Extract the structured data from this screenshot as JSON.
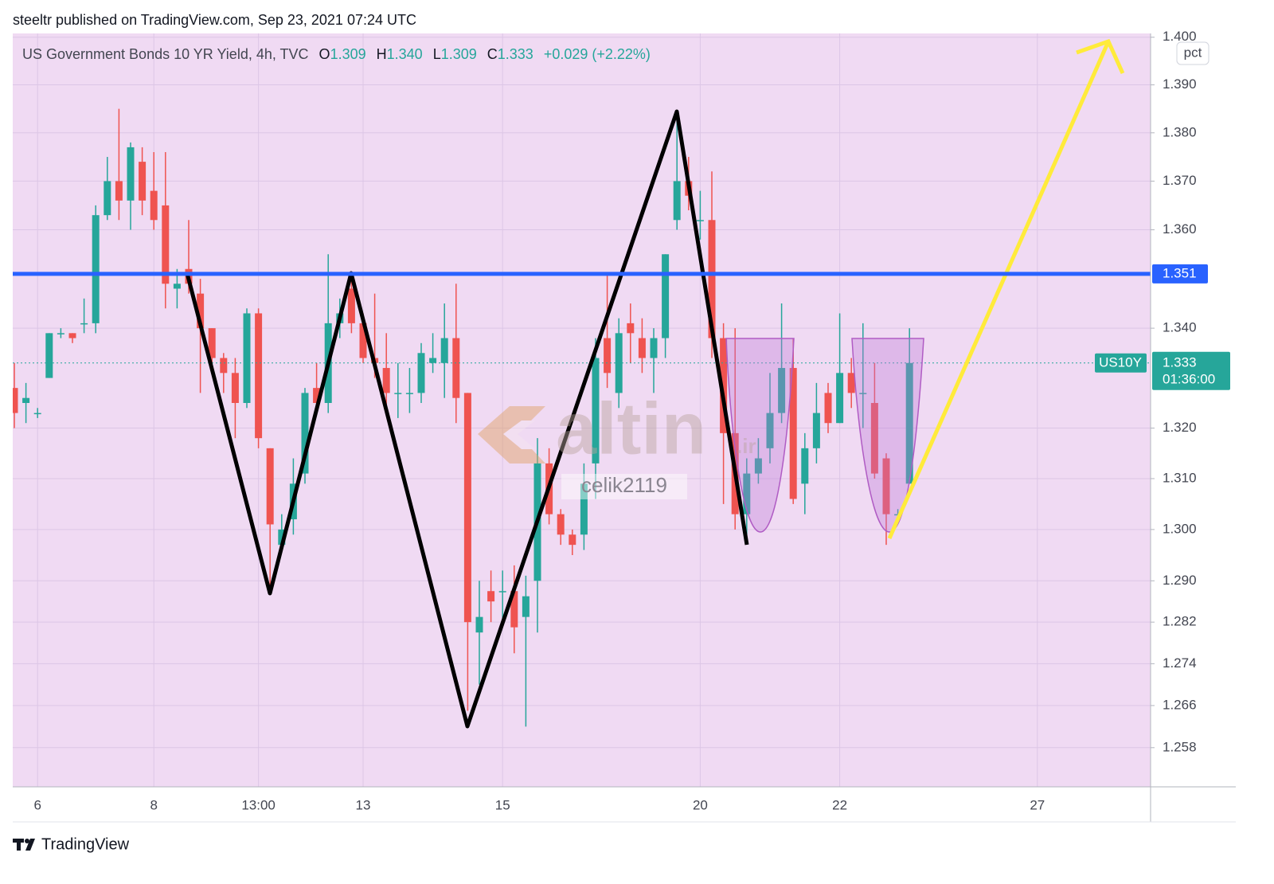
{
  "header": {
    "publisher": "steeltr published on TradingView.com, Sep 23, 2021 07:24 UTC"
  },
  "footer": {
    "brand": "TradingView"
  },
  "watermark": {
    "brand": "altin",
    "suffix": ".ir",
    "author": "celik2119"
  },
  "chart_data": {
    "type": "candlestick",
    "title": "US Government Bonds 10 YR Yield, 4h, TVC",
    "legend_values": [
      {
        "label": "O",
        "value": "1.309"
      },
      {
        "label": "H",
        "value": "1.340"
      },
      {
        "label": "L",
        "value": "1.309"
      },
      {
        "label": "C",
        "value": "1.333"
      }
    ],
    "change": "+0.029 (+2.22%)",
    "scale_mode": "pct",
    "log_scale": true,
    "grid": true,
    "background": "#f0daf3",
    "up_color": "#26a69a",
    "down_color": "#ef5350",
    "price_line": 1.351,
    "price_line_color": "#2962ff",
    "last_price": 1.333,
    "symbol": "US10Y",
    "countdown": "01:36:00",
    "ylim": [
      1.2506,
      1.4008
    ],
    "yticks": [
      {
        "value": 1.4,
        "label": "1.400"
      },
      {
        "value": 1.39,
        "label": "1.390"
      },
      {
        "value": 1.38,
        "label": "1.380"
      },
      {
        "value": 1.37,
        "label": "1.370"
      },
      {
        "value": 1.36,
        "label": "1.360"
      },
      {
        "value": 1.34,
        "label": "1.340"
      },
      {
        "value": 1.32,
        "label": "1.320"
      },
      {
        "value": 1.31,
        "label": "1.310"
      },
      {
        "value": 1.3,
        "label": "1.300"
      },
      {
        "value": 1.29,
        "label": "1.290"
      },
      1.282,
      1.274,
      1.266,
      1.258
    ],
    "categories": [
      null,
      null,
      "6",
      null,
      null,
      null,
      null,
      null,
      null,
      null,
      null,
      null,
      "8",
      null,
      null,
      null,
      null,
      null,
      null,
      null,
      null,
      "13:00",
      null,
      null,
      null,
      null,
      null,
      null,
      null,
      null,
      "13",
      null,
      null,
      null,
      null,
      null,
      null,
      null,
      null,
      null,
      null,
      null,
      "15",
      null,
      null,
      null,
      null,
      null,
      null,
      null,
      null,
      null,
      null,
      null,
      null,
      null,
      null,
      null,
      null,
      "20",
      null,
      null,
      null,
      null,
      null,
      null,
      null,
      null,
      null,
      null,
      null,
      "22",
      null,
      null,
      null,
      null,
      null,
      null,
      null,
      null,
      null,
      null,
      null,
      null,
      null,
      null,
      null,
      null,
      "27",
      null,
      null,
      null,
      null,
      null,
      null,
      null,
      null,
      null
    ],
    "open": [
      1.328,
      1.325,
      1.323,
      1.33,
      1.339,
      1.339,
      1.341,
      1.341,
      1.363,
      1.37,
      1.366,
      1.374,
      1.368,
      1.365,
      1.348,
      1.352,
      1.347,
      1.34,
      1.334,
      1.331,
      1.325,
      1.343,
      1.316,
      1.297,
      1.302,
      1.311,
      1.328,
      1.325,
      1.341,
      1.348,
      1.341,
      1.334,
      1.332,
      1.327,
      1.327,
      1.327,
      1.333,
      1.333,
      1.338,
      1.327,
      1.28,
      1.288,
      1.288,
      1.288,
      1.283,
      1.29,
      1.313,
      1.303,
      1.299,
      1.299,
      1.313,
      1.338,
      1.327,
      1.341,
      1.338,
      1.334,
      1.338,
      1.362,
      1.37,
      1.362,
      1.362,
      1.338,
      1.319,
      1.303,
      1.311,
      1.316,
      1.323,
      1.332,
      1.309,
      1.316,
      1.327,
      1.321,
      1.331,
      1.327,
      1.325,
      1.314,
      1.303,
      1.309,
      null,
      null,
      null,
      null,
      null,
      null,
      null,
      null,
      null,
      null,
      null,
      null,
      null,
      null,
      null,
      null,
      null,
      null,
      null,
      null
    ],
    "high": [
      1.333,
      1.329,
      1.324,
      1.339,
      1.34,
      1.339,
      1.346,
      1.365,
      1.375,
      1.385,
      1.378,
      1.377,
      1.376,
      1.376,
      1.352,
      1.362,
      1.35,
      1.34,
      1.335,
      1.334,
      1.344,
      1.344,
      1.316,
      1.303,
      1.314,
      1.328,
      1.333,
      1.355,
      1.346,
      1.351,
      1.343,
      1.347,
      1.339,
      1.333,
      1.332,
      1.337,
      1.339,
      1.345,
      1.349,
      1.327,
      1.29,
      1.292,
      1.292,
      1.293,
      1.291,
      1.318,
      1.316,
      1.304,
      1.3,
      1.313,
      1.338,
      1.351,
      1.342,
      1.345,
      1.342,
      1.34,
      1.355,
      1.384,
      1.375,
      1.368,
      1.372,
      1.341,
      1.34,
      1.314,
      1.318,
      1.331,
      1.345,
      1.338,
      1.319,
      1.329,
      1.329,
      1.343,
      1.334,
      1.341,
      1.333,
      1.315,
      1.304,
      1.34,
      null,
      null,
      null,
      null,
      null,
      null,
      null,
      null,
      null,
      null,
      null,
      null,
      null,
      null,
      null,
      null,
      null,
      null,
      null,
      null
    ],
    "low": [
      1.32,
      1.321,
      1.322,
      1.33,
      1.338,
      1.337,
      1.339,
      1.339,
      1.362,
      1.362,
      1.36,
      1.363,
      1.36,
      1.344,
      1.344,
      1.347,
      1.327,
      1.333,
      1.327,
      1.318,
      1.324,
      1.316,
      1.288,
      1.296,
      1.299,
      1.309,
      1.323,
      1.323,
      1.338,
      1.339,
      1.333,
      1.33,
      1.324,
      1.322,
      1.323,
      1.325,
      1.331,
      1.326,
      1.321,
      1.265,
      1.27,
      1.282,
      1.282,
      1.276,
      1.262,
      1.28,
      1.301,
      1.297,
      1.295,
      1.296,
      1.306,
      1.328,
      1.324,
      1.333,
      1.331,
      1.327,
      1.334,
      1.36,
      1.364,
      1.358,
      1.334,
      1.305,
      1.3,
      1.299,
      1.309,
      1.313,
      1.321,
      1.305,
      1.303,
      1.313,
      1.319,
      1.321,
      1.324,
      1.32,
      1.31,
      1.297,
      1.303,
      1.309,
      null,
      null,
      null,
      null,
      null,
      null,
      null,
      null,
      null,
      null,
      null,
      null,
      null,
      null,
      null,
      null,
      null,
      null,
      null,
      null
    ],
    "close": [
      1.323,
      1.326,
      1.323,
      1.339,
      1.339,
      1.338,
      1.341,
      1.363,
      1.37,
      1.366,
      1.377,
      1.366,
      1.362,
      1.349,
      1.349,
      1.349,
      1.34,
      1.334,
      1.331,
      1.325,
      1.343,
      1.318,
      1.301,
      1.3,
      1.309,
      1.327,
      1.325,
      1.341,
      1.343,
      1.341,
      1.334,
      1.333,
      1.327,
      1.327,
      1.327,
      1.335,
      1.334,
      1.338,
      1.326,
      1.282,
      1.283,
      1.286,
      1.288,
      1.281,
      1.287,
      1.313,
      1.303,
      1.299,
      1.297,
      1.309,
      1.334,
      1.331,
      1.339,
      1.339,
      1.334,
      1.338,
      1.355,
      1.37,
      1.367,
      1.362,
      1.338,
      1.319,
      1.303,
      1.311,
      1.314,
      1.323,
      1.332,
      1.306,
      1.316,
      1.323,
      1.321,
      1.331,
      1.327,
      1.327,
      1.311,
      1.303,
      1.303,
      1.333,
      null,
      null,
      null,
      null,
      null,
      null,
      null,
      null,
      null,
      null,
      null,
      null,
      null,
      null,
      null,
      null,
      null,
      null,
      null,
      null
    ]
  }
}
